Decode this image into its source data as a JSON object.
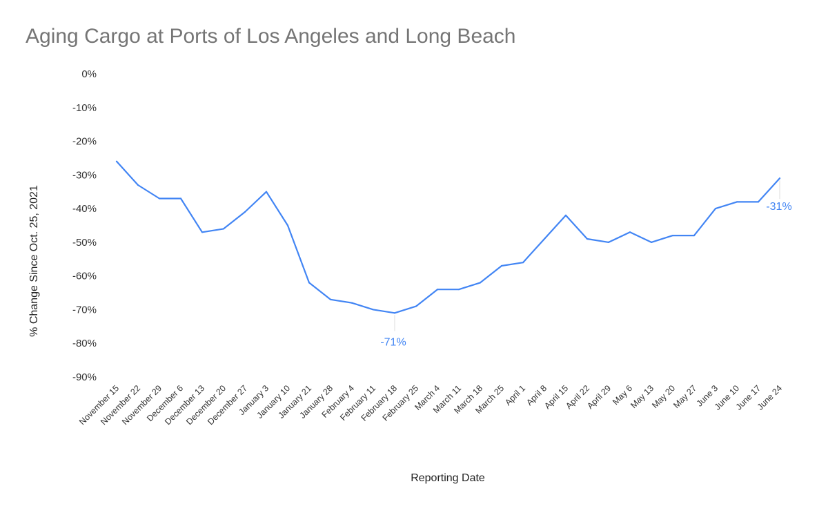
{
  "chart_data": {
    "type": "line",
    "title": "Aging Cargo at Ports of Los Angeles and Long Beach",
    "xlabel": "Reporting Date",
    "ylabel": "% Change Since Oct. 25, 2021",
    "ylim": [
      -90,
      0
    ],
    "yticks": [
      "0%",
      "-10%",
      "-20%",
      "-30%",
      "-40%",
      "-50%",
      "-60%",
      "-70%",
      "-80%",
      "-90%"
    ],
    "grid": false,
    "legend": "none",
    "line_color": "#4285f4",
    "categories": [
      "November 15",
      "November 22",
      "November 29",
      "December 6",
      "December 13",
      "December 20",
      "December 27",
      "January 3",
      "January 10",
      "January 21",
      "January 28",
      "February 4",
      "February 11",
      "February 18",
      "February 25",
      "March 4",
      "March 11",
      "March 18",
      "March 25",
      "April 1",
      "April 8",
      "April 15",
      "April 22",
      "April 29",
      "May 6",
      "May 13",
      "May 20",
      "May 27",
      "June 3",
      "June 10",
      "June 17",
      "June 24"
    ],
    "series": [
      {
        "values": [
          -26,
          -33,
          -37,
          -37,
          -47,
          -46,
          -41,
          -35,
          -45,
          -62,
          -67,
          -68,
          -70,
          -71,
          -69,
          -64,
          -64,
          -62,
          -57,
          -56,
          -49,
          -42,
          -49,
          -50,
          -47,
          -50,
          -48,
          -48,
          -40,
          -38,
          -38,
          -31
        ]
      }
    ],
    "annotations": [
      {
        "category": "February 18",
        "label": "-71%"
      },
      {
        "category": "June 24",
        "label": "-31%"
      }
    ]
  }
}
